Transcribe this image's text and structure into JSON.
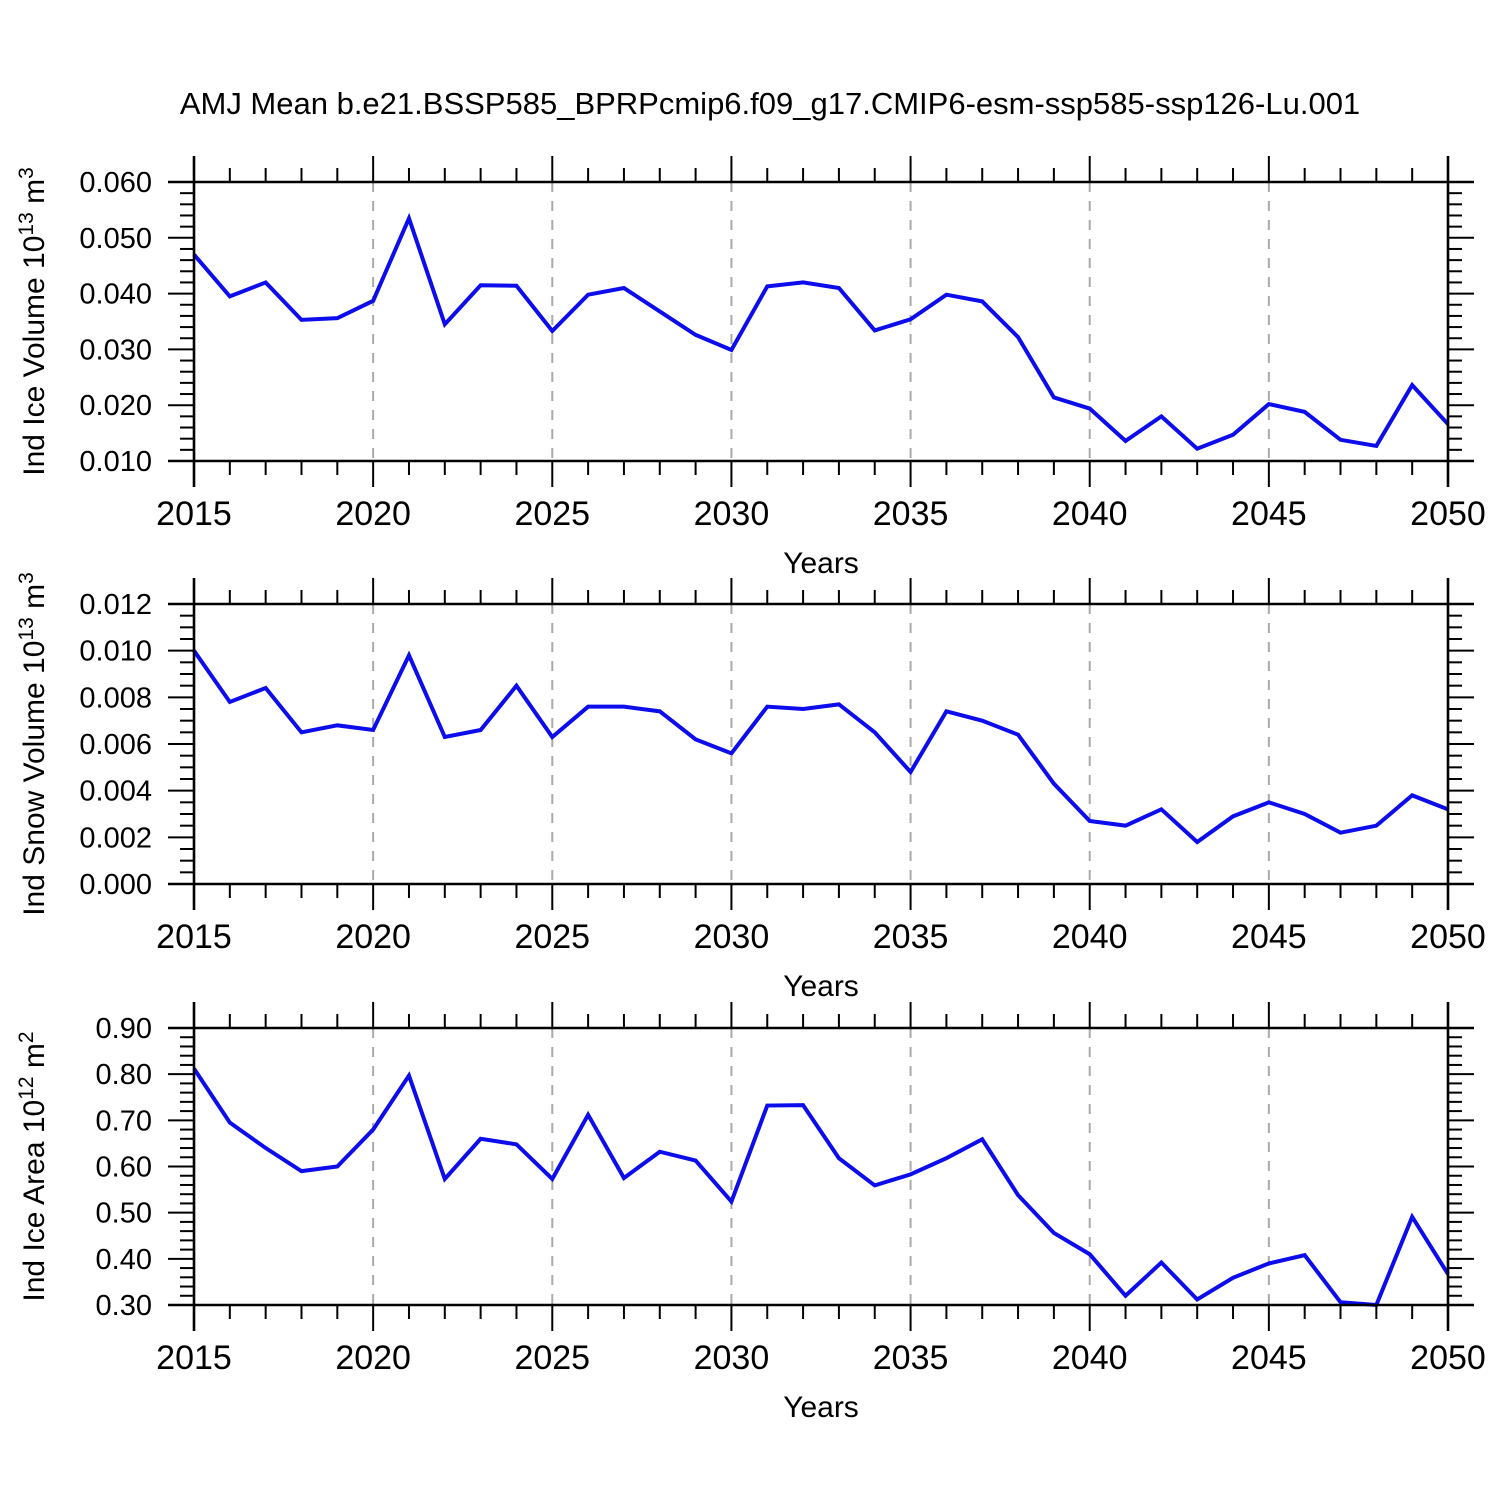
{
  "title": "AMJ Mean b.e21.BSSP585_BPRPcmip6.f09_g17.CMIP6-esm-ssp585-ssp126-Lu.001",
  "colors": {
    "line": "#0c0cec",
    "grid": "#aaaaaa",
    "frame": "#000000",
    "background": "#ffffff"
  },
  "chart_data": [
    {
      "type": "line",
      "name": "ice-volume",
      "ylabel": "Ind Ice Volume 10^13 m^3",
      "ylabel_parts": [
        {
          "t": "Ind Ice Volume 10",
          "sup": false
        },
        {
          "t": "13",
          "sup": true
        },
        {
          "t": " m",
          "sup": false
        },
        {
          "t": "3",
          "sup": true
        }
      ],
      "xlabel": "Years",
      "xlim": [
        2015,
        2050
      ],
      "ylim": [
        0.01,
        0.06
      ],
      "xticks": [
        2015,
        2020,
        2025,
        2030,
        2035,
        2040,
        2045,
        2050
      ],
      "xtick_labels": [
        "2015",
        "2020",
        "2025",
        "2030",
        "2035",
        "2040",
        "2045",
        "2050"
      ],
      "yticks": [
        0.01,
        0.02,
        0.03,
        0.04,
        0.05,
        0.06
      ],
      "ytick_labels": [
        "0.010",
        "0.020",
        "0.030",
        "0.040",
        "0.050",
        "0.060"
      ],
      "y_minor_step": 0.002,
      "x_minor_step": 1,
      "grid_vertical_dashed_at": [
        2020,
        2025,
        2030,
        2035,
        2040,
        2045
      ],
      "legend": "none",
      "x": [
        2015,
        2016,
        2017,
        2018,
        2019,
        2020,
        2021,
        2022,
        2023,
        2024,
        2025,
        2026,
        2027,
        2028,
        2029,
        2030,
        2031,
        2032,
        2033,
        2034,
        2035,
        2036,
        2037,
        2038,
        2039,
        2040,
        2041,
        2042,
        2043,
        2044,
        2045,
        2046,
        2047,
        2048,
        2049,
        2050
      ],
      "values": [
        0.047,
        0.0395,
        0.042,
        0.0353,
        0.0356,
        0.0387,
        0.0535,
        0.0345,
        0.0415,
        0.0414,
        0.0333,
        0.0398,
        0.041,
        0.0368,
        0.0326,
        0.0299,
        0.0413,
        0.042,
        0.041,
        0.0334,
        0.0354,
        0.0398,
        0.0386,
        0.0322,
        0.0214,
        0.0194,
        0.0136,
        0.018,
        0.0122,
        0.0147,
        0.0202,
        0.0188,
        0.0138,
        0.0127,
        0.0236,
        0.0166
      ]
    },
    {
      "type": "line",
      "name": "snow-volume",
      "ylabel": "Ind Snow Volume 10^13 m^3",
      "ylabel_parts": [
        {
          "t": "Ind Snow Volume 10",
          "sup": false
        },
        {
          "t": "13",
          "sup": true
        },
        {
          "t": " m",
          "sup": false
        },
        {
          "t": "3",
          "sup": true
        }
      ],
      "xlabel": "Years",
      "xlim": [
        2015,
        2050
      ],
      "ylim": [
        0.0,
        0.012
      ],
      "xticks": [
        2015,
        2020,
        2025,
        2030,
        2035,
        2040,
        2045,
        2050
      ],
      "xtick_labels": [
        "2015",
        "2020",
        "2025",
        "2030",
        "2035",
        "2040",
        "2045",
        "2050"
      ],
      "yticks": [
        0.0,
        0.002,
        0.004,
        0.006,
        0.008,
        0.01,
        0.012
      ],
      "ytick_labels": [
        "0.000",
        "0.002",
        "0.004",
        "0.006",
        "0.008",
        "0.010",
        "0.012"
      ],
      "y_minor_step": 0.0005,
      "x_minor_step": 1,
      "grid_vertical_dashed_at": [
        2020,
        2025,
        2030,
        2035,
        2040,
        2045
      ],
      "legend": "none",
      "x": [
        2015,
        2016,
        2017,
        2018,
        2019,
        2020,
        2021,
        2022,
        2023,
        2024,
        2025,
        2026,
        2027,
        2028,
        2029,
        2030,
        2031,
        2032,
        2033,
        2034,
        2035,
        2036,
        2037,
        2038,
        2039,
        2040,
        2041,
        2042,
        2043,
        2044,
        2045,
        2046,
        2047,
        2048,
        2049,
        2050
      ],
      "values": [
        0.01,
        0.0078,
        0.0084,
        0.0065,
        0.0068,
        0.0066,
        0.0098,
        0.0063,
        0.0066,
        0.0085,
        0.0063,
        0.0076,
        0.0076,
        0.0074,
        0.0062,
        0.0056,
        0.0076,
        0.0075,
        0.0077,
        0.0065,
        0.0048,
        0.0074,
        0.007,
        0.0064,
        0.0043,
        0.0027,
        0.0025,
        0.0032,
        0.0018,
        0.0029,
        0.0035,
        0.003,
        0.0022,
        0.0025,
        0.0038,
        0.0032
      ]
    },
    {
      "type": "line",
      "name": "ice-area",
      "ylabel": "Ind Ice Area 10^12 m^2",
      "ylabel_parts": [
        {
          "t": "Ind Ice Area 10",
          "sup": false
        },
        {
          "t": "12",
          "sup": true
        },
        {
          "t": " m",
          "sup": false
        },
        {
          "t": "2",
          "sup": true
        }
      ],
      "xlabel": "Years",
      "xlim": [
        2015,
        2050
      ],
      "ylim": [
        0.3,
        0.9
      ],
      "xticks": [
        2015,
        2020,
        2025,
        2030,
        2035,
        2040,
        2045,
        2050
      ],
      "xtick_labels": [
        "2015",
        "2020",
        "2025",
        "2030",
        "2035",
        "2040",
        "2045",
        "2050"
      ],
      "yticks": [
        0.3,
        0.4,
        0.5,
        0.6,
        0.7,
        0.8,
        0.9
      ],
      "ytick_labels": [
        "0.30",
        "0.40",
        "0.50",
        "0.60",
        "0.70",
        "0.80",
        "0.90"
      ],
      "y_minor_step": 0.02,
      "x_minor_step": 1,
      "grid_vertical_dashed_at": [
        2020,
        2025,
        2030,
        2035,
        2040,
        2045
      ],
      "legend": "none",
      "x": [
        2015,
        2016,
        2017,
        2018,
        2019,
        2020,
        2021,
        2022,
        2023,
        2024,
        2025,
        2026,
        2027,
        2028,
        2029,
        2030,
        2031,
        2032,
        2033,
        2034,
        2035,
        2036,
        2037,
        2038,
        2039,
        2040,
        2041,
        2042,
        2043,
        2044,
        2045,
        2046,
        2047,
        2048,
        2049,
        2050
      ],
      "values": [
        0.812,
        0.695,
        0.64,
        0.59,
        0.6,
        0.68,
        0.797,
        0.573,
        0.66,
        0.648,
        0.573,
        0.712,
        0.575,
        0.632,
        0.613,
        0.524,
        0.732,
        0.733,
        0.618,
        0.559,
        0.583,
        0.618,
        0.659,
        0.538,
        0.456,
        0.41,
        0.32,
        0.392,
        0.312,
        0.359,
        0.39,
        0.408,
        0.306,
        0.3,
        0.491,
        0.367
      ]
    }
  ]
}
